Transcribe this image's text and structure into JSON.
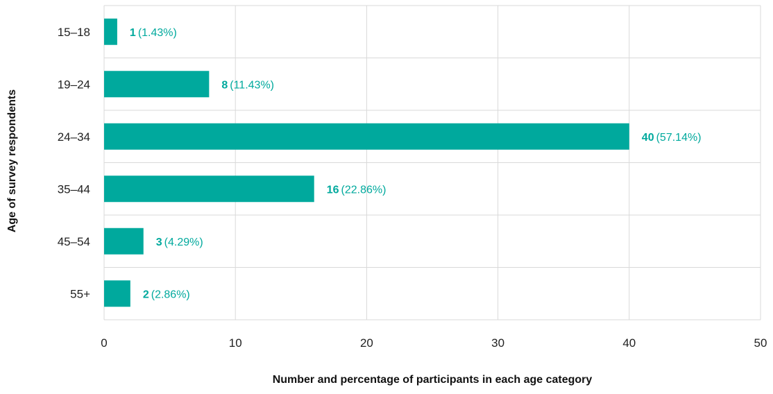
{
  "chart_data": {
    "type": "bar",
    "orientation": "horizontal",
    "categories": [
      "15–18",
      "19–24",
      "24–34",
      "35–44",
      "45–54",
      "55+"
    ],
    "values": [
      1,
      8,
      40,
      16,
      3,
      2
    ],
    "percent_labels": [
      "(1.43%)",
      "(11.43%)",
      "(57.14%)",
      "(22.86%)",
      "(4.29%)",
      "(2.86%)"
    ],
    "xlabel": "Number and percentage of participants in each age category",
    "ylabel": "Age of survey respondents",
    "xlim": [
      0,
      50
    ],
    "xticks": [
      0,
      10,
      20,
      30,
      40,
      50
    ],
    "grid": true,
    "bar_color": "#00a99d",
    "label_color": "#00a99d",
    "grid_color": "#d9d9d9"
  }
}
